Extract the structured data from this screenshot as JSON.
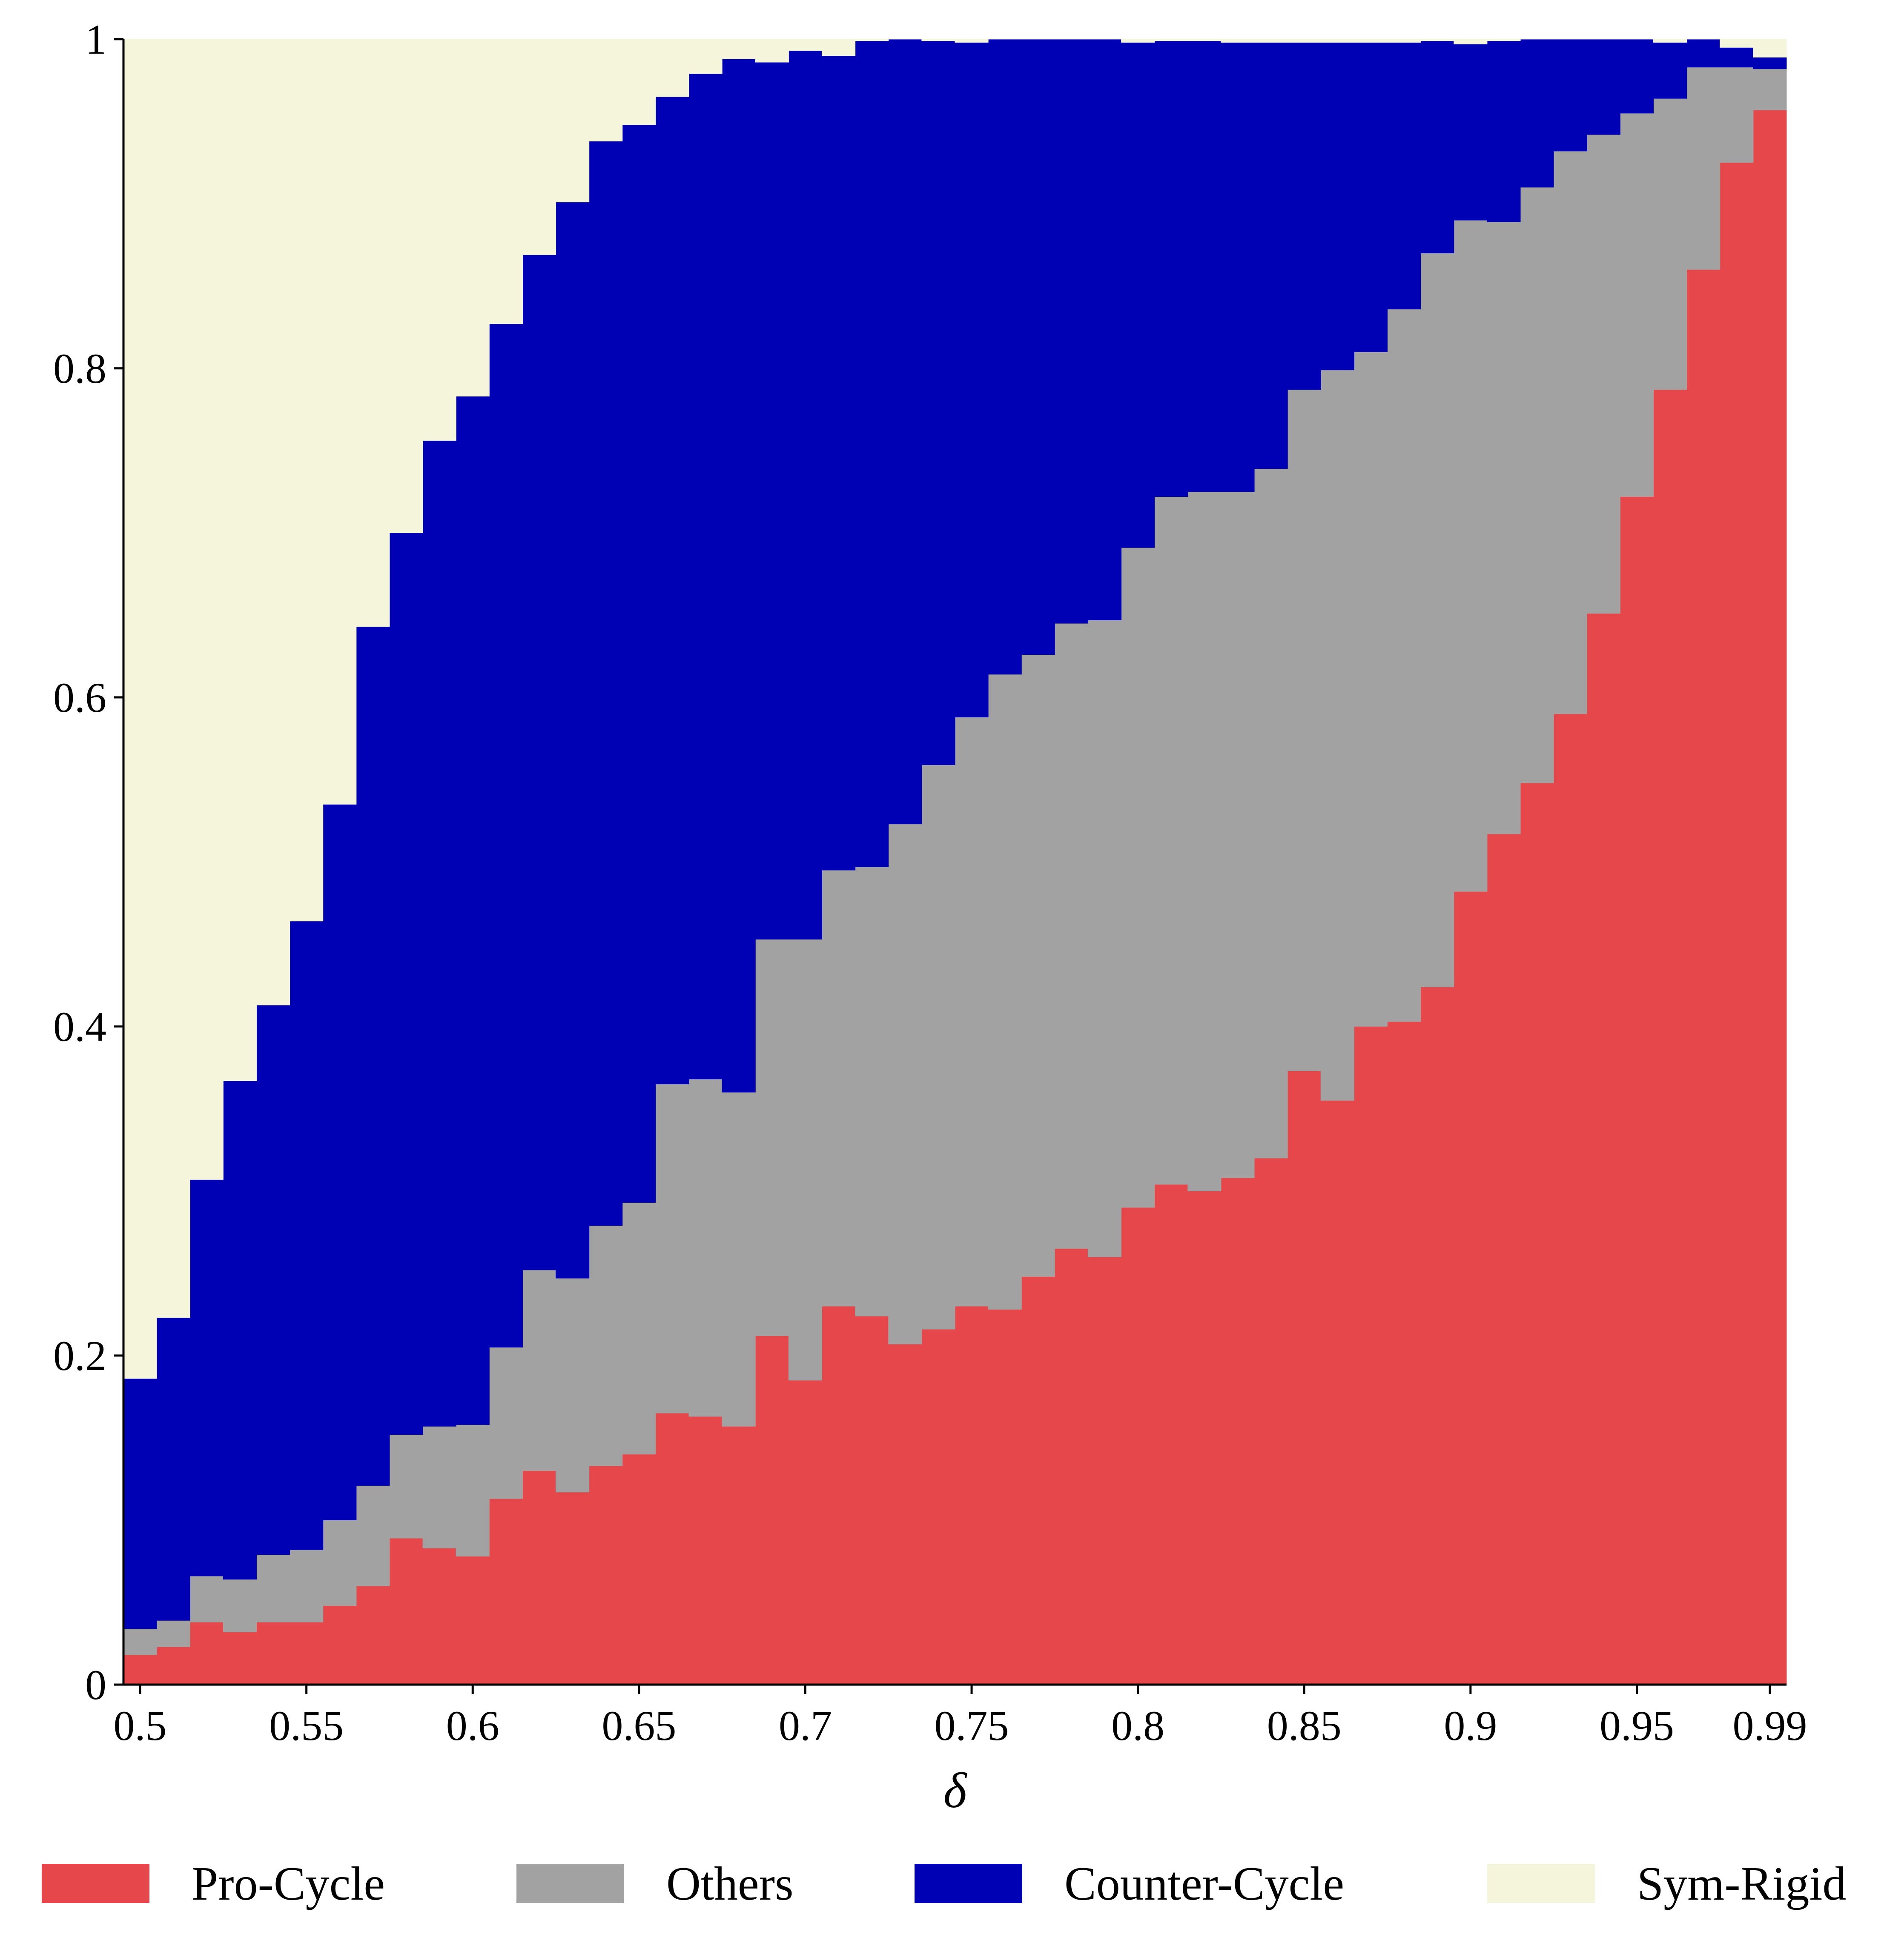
{
  "chart_data": {
    "type": "area",
    "stacked": true,
    "step": true,
    "xlabel": "δ",
    "ylabel": "",
    "xlim": [
      0.495,
      0.995
    ],
    "ylim": [
      0,
      1
    ],
    "x_ticks": [
      0.5,
      0.55,
      0.6,
      0.65,
      0.7,
      0.75,
      0.8,
      0.85,
      0.9,
      0.95,
      0.99
    ],
    "x_tick_labels": [
      "0.5",
      "0.55",
      "0.6",
      "0.65",
      "0.7",
      "0.75",
      "0.8",
      "0.85",
      "0.9",
      "0.95",
      "0.99"
    ],
    "y_ticks": [
      0,
      0.2,
      0.4,
      0.6,
      0.8,
      1
    ],
    "y_tick_labels": [
      "0",
      "0.2",
      "0.4",
      "0.6",
      "0.8",
      "1"
    ],
    "grid": false,
    "legend_position": "bottom",
    "x": [
      0.5,
      0.51,
      0.52,
      0.53,
      0.54,
      0.55,
      0.56,
      0.57,
      0.58,
      0.59,
      0.6,
      0.61,
      0.62,
      0.63,
      0.64,
      0.65,
      0.66,
      0.67,
      0.68,
      0.69,
      0.7,
      0.71,
      0.72,
      0.73,
      0.74,
      0.75,
      0.76,
      0.77,
      0.78,
      0.79,
      0.8,
      0.81,
      0.82,
      0.83,
      0.84,
      0.85,
      0.86,
      0.87,
      0.88,
      0.89,
      0.9,
      0.91,
      0.92,
      0.93,
      0.94,
      0.95,
      0.96,
      0.97,
      0.98,
      0.99
    ],
    "series": [
      {
        "name": "Pro-Cycle",
        "color": "#e6474a",
        "values": [
          0.018,
          0.023,
          0.038,
          0.032,
          0.038,
          0.038,
          0.048,
          0.06,
          0.089,
          0.083,
          0.078,
          0.113,
          0.13,
          0.117,
          0.133,
          0.14,
          0.165,
          0.163,
          0.157,
          0.212,
          0.185,
          0.23,
          0.224,
          0.207,
          0.216,
          0.23,
          0.228,
          0.248,
          0.265,
          0.26,
          0.29,
          0.304,
          0.3,
          0.308,
          0.32,
          0.373,
          0.355,
          0.4,
          0.403,
          0.424,
          0.482,
          0.517,
          0.548,
          0.59,
          0.651,
          0.722,
          0.787,
          0.86,
          0.925,
          0.957
        ]
      },
      {
        "name": "Others",
        "color": "#a2a2a2",
        "values": [
          0.016,
          0.016,
          0.028,
          0.032,
          0.041,
          0.044,
          0.052,
          0.061,
          0.063,
          0.074,
          0.08,
          0.092,
          0.122,
          0.13,
          0.146,
          0.153,
          0.2,
          0.205,
          0.203,
          0.241,
          0.268,
          0.265,
          0.273,
          0.316,
          0.343,
          0.358,
          0.386,
          0.378,
          0.38,
          0.387,
          0.401,
          0.418,
          0.425,
          0.417,
          0.419,
          0.414,
          0.444,
          0.41,
          0.433,
          0.446,
          0.408,
          0.372,
          0.362,
          0.342,
          0.291,
          0.233,
          0.177,
          0.123,
          0.058,
          0.025
        ]
      },
      {
        "name": "Counter-Cycle",
        "color": "#0000b4",
        "values": [
          0.152,
          0.184,
          0.241,
          0.303,
          0.334,
          0.382,
          0.435,
          0.522,
          0.548,
          0.599,
          0.625,
          0.622,
          0.617,
          0.654,
          0.659,
          0.655,
          0.6,
          0.611,
          0.628,
          0.533,
          0.54,
          0.495,
          0.502,
          0.477,
          0.44,
          0.41,
          0.386,
          0.374,
          0.355,
          0.353,
          0.307,
          0.277,
          0.274,
          0.273,
          0.259,
          0.211,
          0.199,
          0.188,
          0.162,
          0.129,
          0.107,
          0.11,
          0.09,
          0.068,
          0.058,
          0.045,
          0.034,
          0.017,
          0.012,
          0.007
        ]
      },
      {
        "name": "Sym-Rigid",
        "color": "#f5f5dc",
        "values": [
          0.814,
          0.777,
          0.693,
          0.633,
          0.587,
          0.536,
          0.465,
          0.357,
          0.3,
          0.244,
          0.217,
          0.173,
          0.131,
          0.099,
          0.062,
          0.052,
          0.035,
          0.021,
          0.012,
          0.014,
          0.007,
          0.01,
          0.001,
          0.0,
          0.001,
          0.002,
          0.0,
          0.0,
          0.0,
          0.0,
          0.002,
          0.001,
          0.001,
          0.002,
          0.002,
          0.002,
          0.002,
          0.002,
          0.002,
          0.001,
          0.003,
          0.001,
          0.0,
          0.0,
          0.0,
          0.0,
          0.002,
          0.0,
          0.005,
          0.011
        ]
      }
    ]
  }
}
